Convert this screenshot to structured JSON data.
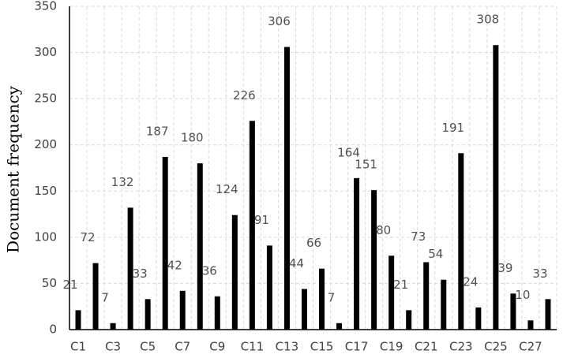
{
  "chart_data": {
    "type": "bar",
    "y_label": "Document frequency",
    "categories": [
      "C1",
      null,
      "C3",
      null,
      "C5",
      null,
      "C7",
      null,
      "C9",
      null,
      "C11",
      null,
      "C13",
      null,
      "C15",
      null,
      "C17",
      null,
      "C19",
      null,
      "C21",
      null,
      "C23",
      null,
      "C25",
      null,
      "C27",
      null
    ],
    "values": [
      21,
      72,
      7,
      132,
      33,
      187,
      42,
      180,
      36,
      124,
      226,
      91,
      306,
      44,
      66,
      7,
      164,
      151,
      80,
      21,
      73,
      54,
      191,
      24,
      308,
      39,
      10,
      33
    ],
    "color": "#000000",
    "ylim": [
      0,
      350
    ],
    "yticks": [
      0,
      50,
      100,
      150,
      200,
      250,
      300,
      350
    ],
    "grid": true
  }
}
